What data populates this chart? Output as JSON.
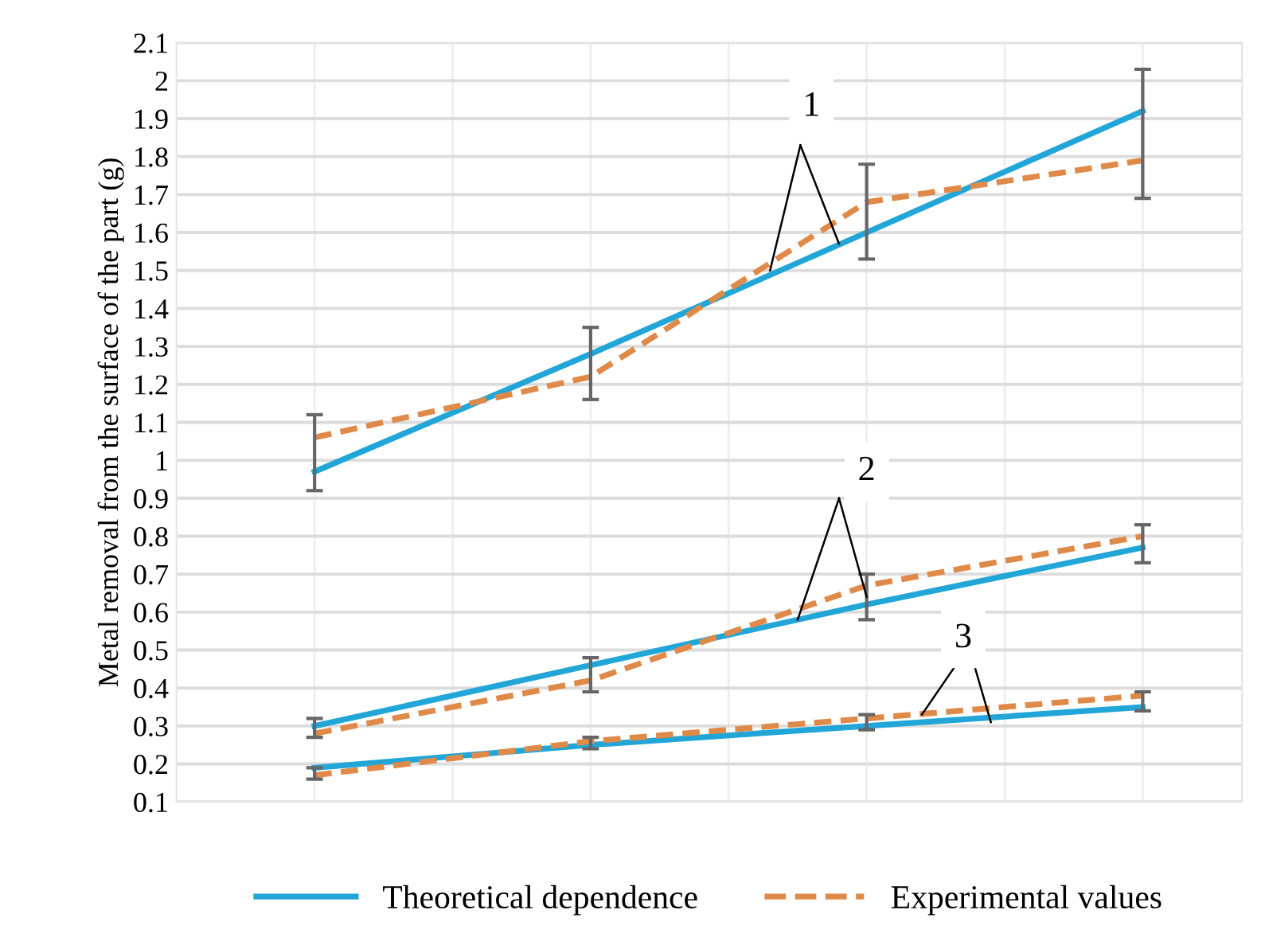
{
  "chart_data": {
    "type": "line",
    "ylabel": "Metal removal from the surface of the part (g)",
    "categories": [
      null,
      null,
      null,
      null
    ],
    "ylim": [
      0.1,
      2.1
    ],
    "yticks": [
      0.1,
      0.2,
      0.3,
      0.4,
      0.5,
      0.6,
      0.7,
      0.8,
      0.9,
      1,
      1.1,
      1.2,
      1.3,
      1.4,
      1.5,
      1.6,
      1.7,
      1.8,
      1.9,
      2,
      2.1
    ],
    "grid": true,
    "legend": "bottom",
    "marker": "none",
    "series": [
      {
        "name": "Theoretical dependence",
        "color": "#22a6d8",
        "line_style": "solid",
        "values": [
          0.97,
          1.28,
          1.6,
          1.92
        ]
      },
      {
        "name": "Experimental values",
        "color": "#e08a4a",
        "line_style": "dashed",
        "values": [
          1.06,
          1.22,
          1.68,
          1.79
        ],
        "errors": [
          [
            0.92,
            1.12
          ],
          [
            1.16,
            1.35
          ],
          [
            1.53,
            1.78
          ],
          [
            1.69,
            2.03
          ]
        ]
      },
      {
        "color": "#22a6d8",
        "line_style": "solid",
        "values": [
          0.3,
          0.46,
          0.62,
          0.77
        ]
      },
      {
        "color": "#e08a4a",
        "line_style": "dashed",
        "values": [
          0.28,
          0.42,
          0.67,
          0.8
        ],
        "errors": [
          [
            0.27,
            0.32
          ],
          [
            0.39,
            0.48
          ],
          [
            0.58,
            0.7
          ],
          [
            0.73,
            0.83
          ]
        ]
      },
      {
        "color": "#22a6d8",
        "line_style": "solid",
        "values": [
          0.19,
          0.25,
          0.3,
          0.35
        ]
      },
      {
        "color": "#e08a4a",
        "line_style": "dashed",
        "values": [
          0.17,
          0.26,
          0.32,
          0.38
        ],
        "errors": [
          [
            0.16,
            0.19
          ],
          [
            0.24,
            0.27
          ],
          [
            0.29,
            0.33
          ],
          [
            0.34,
            0.39
          ]
        ]
      }
    ],
    "annotations": [
      "1",
      "2",
      "3"
    ]
  }
}
